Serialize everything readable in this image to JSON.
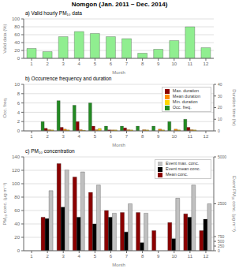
{
  "title": "Nomgon (Jan. 2011 ~ Dec. 2014)",
  "chart_data": [
    {
      "type": "bar",
      "title": "a) Valid hourly PM₁₀ data",
      "x_label": "Month",
      "y_label": "Valid data (%)",
      "categories": [
        "1",
        "2",
        "3",
        "4",
        "5",
        "6",
        "7",
        "8",
        "9",
        "10",
        "11",
        "12"
      ],
      "values": [
        25,
        17,
        55,
        68,
        63,
        55,
        50,
        13,
        23,
        45,
        80,
        27
      ],
      "color": "#90EE90",
      "ylim": [
        0,
        100
      ],
      "yticks": [
        0,
        20,
        40,
        60,
        80,
        100
      ],
      "grid": true
    },
    {
      "type": "bar",
      "title": "b) Occurrence frequency and duration",
      "x_label": "Month",
      "y_label": "Occ. freq.",
      "y2_label": "Duration time (hr)",
      "categories": [
        "1",
        "2",
        "3",
        "4",
        "5",
        "6",
        "7",
        "8",
        "9",
        "10",
        "11",
        "12"
      ],
      "series": [
        {
          "name": "Occ. freq.",
          "color": "#228B22",
          "values": [
            0,
            2,
            6.5,
            5.5,
            6,
            1,
            1,
            1,
            1,
            2,
            2.5,
            0
          ]
        },
        {
          "name": "Max. duration",
          "color": "#8B0000",
          "axis": "y2",
          "values": [
            0,
            2.2,
            3,
            8,
            4,
            0.8,
            2.5,
            0,
            0,
            0,
            3,
            0
          ]
        },
        {
          "name": "Mean duration",
          "color": "#FF8C00",
          "axis": "y2",
          "values": [
            0,
            1,
            1.5,
            1,
            1,
            0.8,
            1,
            1,
            1.5,
            1.5,
            1,
            0
          ]
        },
        {
          "name": "Min. duration",
          "color": "#FFD700",
          "axis": "y2",
          "values": [
            0,
            0.8,
            0.8,
            0.5,
            2,
            0.8,
            0.8,
            0.8,
            0.8,
            0.8,
            0.8,
            0
          ]
        }
      ],
      "ylim": [
        0,
        10
      ],
      "yticks": [
        0,
        2,
        4,
        6,
        8,
        10
      ],
      "y2lim": [
        0,
        40
      ],
      "y2ticks": [
        0,
        10,
        20,
        30,
        40
      ],
      "grid": true,
      "legend": "upper right"
    },
    {
      "type": "bar",
      "title": "c) PM₁₀ concentration",
      "x_label": "Month",
      "y_label": "PM₁₀ conc. (μg m⁻³)",
      "y2_label": "Event PM₁₀ conc. (μg m⁻³)",
      "categories": [
        "1",
        "2",
        "3",
        "4",
        "5",
        "6",
        "7",
        "8",
        "9",
        "10",
        "11",
        "12"
      ],
      "series": [
        {
          "name": "Mean conc.",
          "color": "#8B0000",
          "values": [
            0,
            50,
            130,
            110,
            87,
            60,
            57,
            57,
            30,
            42,
            55,
            30
          ]
        },
        {
          "name": "Event mean conc.",
          "color": "#000000",
          "values": [
            0,
            48,
            65,
            50,
            40,
            50,
            28,
            12,
            0,
            18,
            50,
            47
          ]
        },
        {
          "name": "Event max. conc.",
          "color": "#C0C0C0",
          "axis": "y2",
          "values": [
            0,
            3200,
            4300,
            4200,
            3500,
            2000,
            2500,
            2000,
            0,
            2800,
            3500,
            2500
          ]
        }
      ],
      "ylim": [
        0,
        140
      ],
      "yticks": [
        0,
        20,
        40,
        60,
        80,
        100,
        120,
        140
      ],
      "y2lim": [
        0,
        5000
      ],
      "y2ticks": [
        0,
        250,
        500,
        750,
        2500,
        5000
      ],
      "grid": true,
      "legend": "upper right"
    }
  ]
}
